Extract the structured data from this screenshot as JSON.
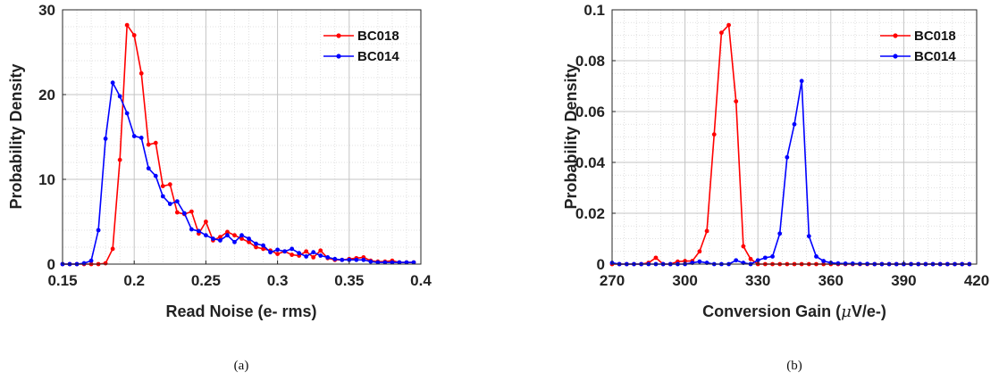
{
  "chart_data": [
    {
      "type": "line",
      "caption": "(a)",
      "xlabel": "Read Noise (e- rms)",
      "ylabel": "Probability Density",
      "xlim": [
        0.15,
        0.4
      ],
      "ylim": [
        0,
        30
      ],
      "xticks": [
        "0.15",
        "0.2",
        "0.25",
        "0.3",
        "0.35",
        "0.4"
      ],
      "xtick_values": [
        0.15,
        0.2,
        0.25,
        0.3,
        0.35,
        0.4
      ],
      "yticks": [
        "0",
        "10",
        "20",
        "30"
      ],
      "ytick_values": [
        0,
        10,
        20,
        30
      ],
      "grid": true,
      "legend_position": "top-right",
      "series": [
        {
          "name": "BC018",
          "color": "#ff0000",
          "x": [
            0.15,
            0.155,
            0.16,
            0.165,
            0.17,
            0.175,
            0.18,
            0.185,
            0.19,
            0.195,
            0.2,
            0.205,
            0.21,
            0.215,
            0.22,
            0.225,
            0.23,
            0.235,
            0.24,
            0.245,
            0.25,
            0.255,
            0.26,
            0.265,
            0.27,
            0.275,
            0.28,
            0.285,
            0.29,
            0.295,
            0.3,
            0.305,
            0.31,
            0.315,
            0.32,
            0.325,
            0.33,
            0.335,
            0.34,
            0.345,
            0.35,
            0.355,
            0.36,
            0.365,
            0.37,
            0.375,
            0.38,
            0.385,
            0.39,
            0.395
          ],
          "y": [
            0,
            0,
            0,
            0,
            0,
            0,
            0.1,
            1.8,
            12.3,
            28.2,
            27.0,
            22.5,
            14.1,
            14.3,
            9.2,
            9.4,
            6.1,
            5.9,
            6.2,
            3.6,
            5.0,
            2.8,
            3.2,
            3.8,
            3.4,
            3.0,
            2.6,
            2.0,
            1.8,
            1.6,
            1.2,
            1.5,
            1.1,
            1.0,
            1.5,
            0.8,
            1.6,
            0.7,
            0.5,
            0.5,
            0.6,
            0.7,
            0.8,
            0.4,
            0.3,
            0.3,
            0.4,
            0.2,
            0.2,
            0.2
          ]
        },
        {
          "name": "BC014",
          "color": "#0000ff",
          "x": [
            0.15,
            0.155,
            0.16,
            0.165,
            0.17,
            0.175,
            0.18,
            0.185,
            0.19,
            0.195,
            0.2,
            0.205,
            0.21,
            0.215,
            0.22,
            0.225,
            0.23,
            0.235,
            0.24,
            0.245,
            0.25,
            0.255,
            0.26,
            0.265,
            0.27,
            0.275,
            0.28,
            0.285,
            0.29,
            0.295,
            0.3,
            0.305,
            0.31,
            0.315,
            0.32,
            0.325,
            0.33,
            0.335,
            0.34,
            0.345,
            0.35,
            0.355,
            0.36,
            0.365,
            0.37,
            0.375,
            0.38,
            0.385,
            0.39,
            0.395
          ],
          "y": [
            0,
            0,
            0,
            0.1,
            0.4,
            4.0,
            14.8,
            21.4,
            19.8,
            17.8,
            15.1,
            14.9,
            11.3,
            10.4,
            8.0,
            7.1,
            7.4,
            6.0,
            4.1,
            3.9,
            3.4,
            3.0,
            2.8,
            3.4,
            2.6,
            3.4,
            3.0,
            2.4,
            2.2,
            1.4,
            1.7,
            1.5,
            1.8,
            1.3,
            0.9,
            1.4,
            1.0,
            0.8,
            0.6,
            0.5,
            0.5,
            0.5,
            0.5,
            0.3,
            0.2,
            0.2,
            0.2,
            0.2,
            0.2,
            0.2
          ]
        }
      ]
    },
    {
      "type": "line",
      "caption": "(b)",
      "xlabel_pre": "Conversion Gain (",
      "xlabel_mu": "μ",
      "xlabel_post": "V/e-)",
      "ylabel": "Probability Density",
      "xlim": [
        270,
        420
      ],
      "ylim": [
        0,
        0.1
      ],
      "xticks": [
        "270",
        "300",
        "330",
        "360",
        "390",
        "420"
      ],
      "xtick_values": [
        270,
        300,
        330,
        360,
        390,
        420
      ],
      "yticks": [
        "0",
        "0.02",
        "0.04",
        "0.06",
        "0.08",
        "0.1"
      ],
      "ytick_values": [
        0,
        0.02,
        0.04,
        0.06,
        0.08,
        0.1
      ],
      "grid": true,
      "legend_position": "top-right",
      "series": [
        {
          "name": "BC018",
          "color": "#ff0000",
          "x": [
            270,
            273,
            276,
            279,
            282,
            285,
            288,
            291,
            294,
            297,
            300,
            303,
            306,
            309,
            312,
            315,
            318,
            321,
            324,
            327,
            330,
            333,
            336,
            339,
            342,
            345,
            348,
            351,
            354,
            357,
            360,
            363,
            366,
            369,
            372,
            375,
            378,
            381,
            384,
            387,
            390,
            393,
            396,
            399,
            402,
            405,
            408,
            411,
            414,
            417
          ],
          "y": [
            0,
            0,
            0,
            0,
            0,
            0.0005,
            0.0025,
            0,
            0,
            0.001,
            0.0012,
            0.0012,
            0.005,
            0.013,
            0.051,
            0.091,
            0.094,
            0.064,
            0.007,
            0.002,
            0,
            0,
            0,
            0,
            0,
            0,
            0,
            0,
            0,
            0,
            0,
            0,
            0,
            0,
            0,
            0,
            0,
            0,
            0,
            0,
            0,
            0,
            0,
            0,
            0,
            0,
            0,
            0,
            0,
            0
          ]
        },
        {
          "name": "BC014",
          "color": "#0000ff",
          "x": [
            270,
            273,
            276,
            279,
            282,
            285,
            288,
            291,
            294,
            297,
            300,
            303,
            306,
            309,
            312,
            315,
            318,
            321,
            324,
            327,
            330,
            333,
            336,
            339,
            342,
            345,
            348,
            351,
            354,
            357,
            360,
            363,
            366,
            369,
            372,
            375,
            378,
            381,
            384,
            387,
            390,
            393,
            396,
            399,
            402,
            405,
            408,
            411,
            414,
            417
          ],
          "y": [
            0.0005,
            0,
            0,
            0,
            0,
            0,
            0,
            0,
            0,
            0,
            0,
            0.0005,
            0.001,
            0.0005,
            0,
            0,
            0,
            0.0015,
            0.0005,
            0,
            0.0015,
            0.0025,
            0.003,
            0.012,
            0.042,
            0.055,
            0.072,
            0.011,
            0.003,
            0.0012,
            0.0005,
            0.0003,
            0.0002,
            0.0002,
            0.0001,
            0.0001,
            0,
            0,
            0,
            0,
            0,
            0,
            0,
            0,
            0,
            0,
            0,
            0,
            0,
            0
          ]
        }
      ]
    }
  ]
}
